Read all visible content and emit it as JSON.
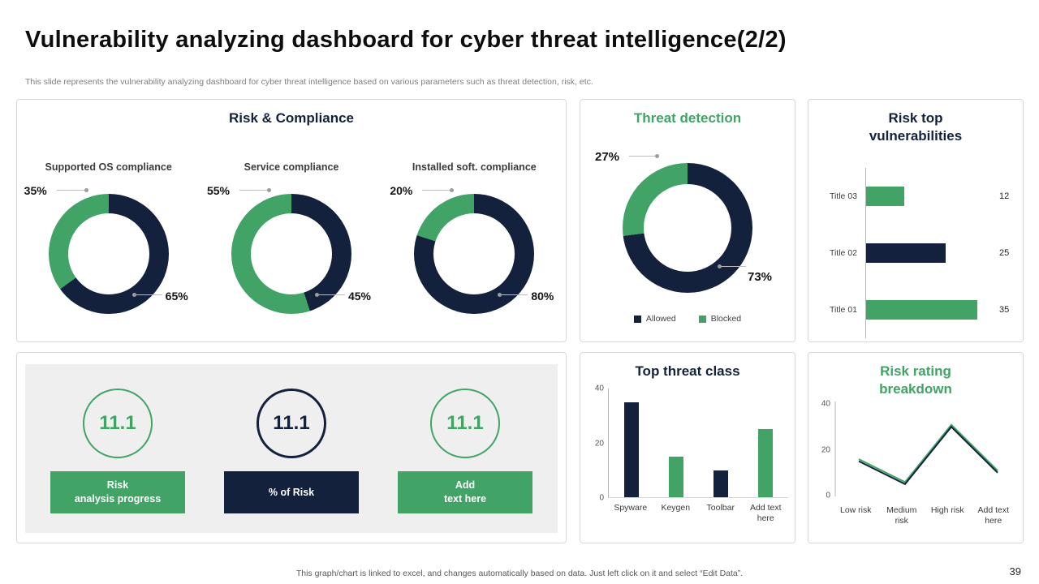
{
  "page": {
    "title": "Vulnerability analyzing dashboard for cyber threat intelligence(2/2)",
    "subtitle": "This slide represents the vulnerability analyzing dashboard for cyber threat intelligence based on various parameters such as threat detection, risk, etc.",
    "footer_note": "This graph/chart is linked to excel, and changes automatically based on data. Just left click on it and select “Edit Data”.",
    "page_number": "39"
  },
  "colors": {
    "navy": "#14213D",
    "green": "#41A366",
    "panel_border": "#D9D9D9",
    "kpi_background": "#EFEFEF"
  },
  "panels": {
    "risk_compliance": {
      "title": "Risk & Compliance"
    },
    "kpi": {
      "items": [
        {
          "value": "11.1",
          "label": "Risk\nanalysis progress",
          "color": "green"
        },
        {
          "value": "11.1",
          "label": "% of Risk",
          "color": "navy"
        },
        {
          "value": "11.1",
          "label": "Add\ntext here",
          "color": "green"
        }
      ]
    }
  },
  "chart_data": [
    {
      "id": "supported-os-compliance",
      "type": "pie",
      "title": "Supported OS compliance",
      "values": {
        "green": 35,
        "navy": 65
      },
      "labels": {
        "green": "35%",
        "navy": "65%"
      }
    },
    {
      "id": "service-compliance",
      "type": "pie",
      "title": "Service compliance",
      "values": {
        "green": 55,
        "navy": 45
      },
      "labels": {
        "green": "55%",
        "navy": "45%"
      }
    },
    {
      "id": "installed-soft-compliance",
      "type": "pie",
      "title": "Installed soft. compliance",
      "values": {
        "green": 20,
        "navy": 80
      },
      "labels": {
        "green": "20%",
        "navy": "80%"
      }
    },
    {
      "id": "threat-detection",
      "type": "pie",
      "title": "Threat detection",
      "values": {
        "green": 27,
        "navy": 73
      },
      "labels": {
        "green": "27%",
        "navy": "73%"
      },
      "legend": [
        {
          "label": "Allowed",
          "color": "navy"
        },
        {
          "label": "Blocked",
          "color": "green"
        }
      ]
    },
    {
      "id": "risk-top-vulnerabilities",
      "type": "bar",
      "orientation": "horizontal",
      "title": "Risk top vulnerabilities",
      "categories": [
        "Title 03",
        "Title 02",
        "Title 01"
      ],
      "values": [
        12,
        25,
        35
      ],
      "colors": [
        "green",
        "navy",
        "green"
      ],
      "xlim": [
        0,
        40
      ]
    },
    {
      "id": "top-threat-class",
      "type": "bar",
      "title": "Top threat class",
      "categories": [
        "Spyware",
        "Keygen",
        "Toolbar",
        "Add text here"
      ],
      "values": [
        35,
        15,
        10,
        25
      ],
      "colors": [
        "navy",
        "green",
        "navy",
        "green"
      ],
      "ylim": [
        0,
        40
      ],
      "yticks": [
        0,
        20,
        40
      ]
    },
    {
      "id": "risk-rating-breakdown",
      "type": "line",
      "title": "Risk rating breakdown",
      "categories": [
        "Low risk",
        "Medium risk",
        "High risk",
        "Add text here"
      ],
      "values": [
        15,
        5,
        30,
        10
      ],
      "ylim": [
        0,
        40
      ],
      "yticks": [
        0,
        20,
        40
      ]
    }
  ]
}
